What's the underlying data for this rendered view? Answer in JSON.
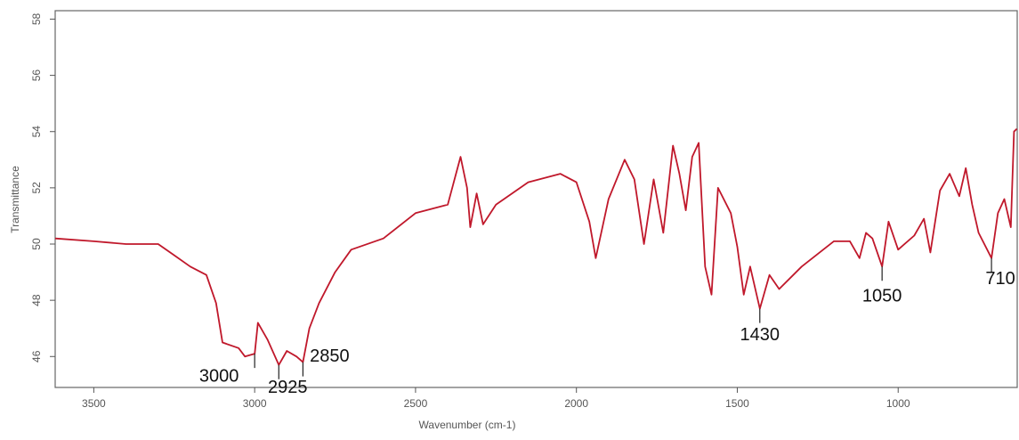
{
  "chart_data": {
    "type": "line",
    "x_label": "Wavenumber (cm-1)",
    "y_label": "Transmittance",
    "xlim": [
      3620,
      630
    ],
    "ylim": [
      44.9,
      58.3
    ],
    "xticks": [
      3500,
      3000,
      2500,
      2000,
      1500,
      1000
    ],
    "yticks": [
      46,
      48,
      50,
      52,
      54,
      56,
      58
    ],
    "series": [
      {
        "color": "#c0182b",
        "x": [
          3620,
          3500,
          3400,
          3300,
          3250,
          3200,
          3150,
          3120,
          3100,
          3050,
          3030,
          3000,
          2990,
          2960,
          2925,
          2900,
          2870,
          2850,
          2830,
          2800,
          2750,
          2700,
          2600,
          2500,
          2400,
          2360,
          2340,
          2330,
          2310,
          2290,
          2250,
          2150,
          2050,
          2000,
          1960,
          1940,
          1900,
          1850,
          1820,
          1790,
          1760,
          1730,
          1700,
          1680,
          1660,
          1640,
          1620,
          1600,
          1580,
          1560,
          1520,
          1500,
          1480,
          1460,
          1430,
          1400,
          1370,
          1300,
          1200,
          1150,
          1120,
          1100,
          1080,
          1050,
          1030,
          1000,
          950,
          920,
          900,
          870,
          840,
          810,
          790,
          770,
          750,
          710,
          690,
          670,
          650,
          640,
          631
        ],
        "values": [
          50.2,
          50.1,
          50.0,
          50.0,
          49.6,
          49.2,
          48.9,
          47.9,
          46.5,
          46.3,
          46.0,
          46.1,
          47.2,
          46.6,
          45.7,
          46.2,
          46.0,
          45.8,
          47.0,
          47.9,
          49.0,
          49.8,
          50.2,
          51.1,
          51.4,
          53.1,
          52.0,
          50.6,
          51.8,
          50.7,
          51.4,
          52.2,
          52.5,
          52.2,
          50.8,
          49.5,
          51.6,
          53.0,
          52.3,
          50.0,
          52.3,
          50.4,
          53.5,
          52.5,
          51.2,
          53.1,
          53.6,
          49.2,
          48.2,
          52.0,
          51.1,
          49.9,
          48.2,
          49.2,
          47.7,
          48.9,
          48.4,
          49.2,
          50.1,
          50.1,
          49.5,
          50.4,
          50.2,
          49.2,
          50.8,
          49.8,
          50.3,
          50.9,
          49.7,
          51.9,
          52.5,
          51.7,
          52.7,
          51.4,
          50.4,
          49.5,
          51.1,
          51.6,
          50.6,
          54.0,
          54.1
        ]
      }
    ],
    "annotations": [
      {
        "text": "3000",
        "x": 3000
      },
      {
        "text": "2925",
        "x": 2925
      },
      {
        "text": "2850",
        "x": 2850
      },
      {
        "text": "1430",
        "x": 1430
      },
      {
        "text": "1050",
        "x": 1050
      },
      {
        "text": "710",
        "x": 710
      }
    ]
  }
}
